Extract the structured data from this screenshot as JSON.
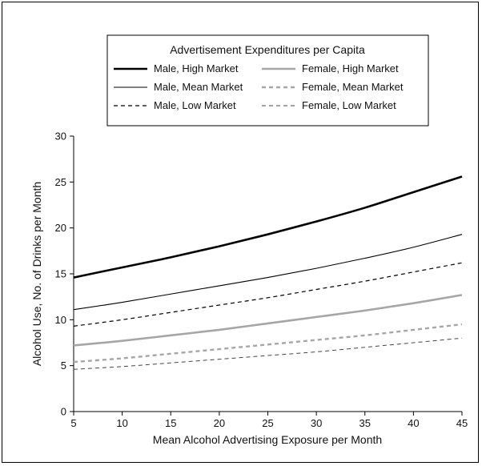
{
  "chart_data": {
    "type": "line",
    "title": "",
    "xlabel": "Mean Alcohol Advertising Exposure per Month",
    "ylabel": "Alcohol Use, No. of Drinks per Month",
    "xlim": [
      5,
      45
    ],
    "ylim": [
      0,
      30
    ],
    "x_ticks": [
      "5",
      "10",
      "15",
      "20",
      "25",
      "30",
      "35",
      "40",
      "45"
    ],
    "y_ticks": [
      "0",
      "5",
      "10",
      "15",
      "20",
      "25",
      "30"
    ],
    "grid": false,
    "legend": {
      "title": "Advertisement Expenditures per Capita",
      "placement": "top-center"
    },
    "x": [
      5,
      10,
      15,
      20,
      25,
      30,
      35,
      40,
      45
    ],
    "series": [
      {
        "name": "Male, High Market",
        "values": [
          14.6,
          15.7,
          16.8,
          18.0,
          19.3,
          20.7,
          22.2,
          23.9,
          25.6
        ],
        "color": "#000000",
        "style": "solid-thick"
      },
      {
        "name": "Male, Mean Market",
        "values": [
          11.1,
          11.9,
          12.8,
          13.7,
          14.6,
          15.6,
          16.7,
          17.9,
          19.3
        ],
        "color": "#000000",
        "style": "solid-thin"
      },
      {
        "name": "Male, Low Market",
        "values": [
          9.3,
          10.0,
          10.8,
          11.6,
          12.4,
          13.3,
          14.2,
          15.2,
          16.2
        ],
        "color": "#000000",
        "style": "dashed"
      },
      {
        "name": "Female, High Market",
        "values": [
          7.2,
          7.7,
          8.3,
          8.9,
          9.6,
          10.3,
          11.0,
          11.8,
          12.7
        ],
        "color": "#a6a6a6",
        "style": "solid-thick"
      },
      {
        "name": "Female, Mean Market",
        "values": [
          5.4,
          5.8,
          6.3,
          6.8,
          7.3,
          7.8,
          8.3,
          8.9,
          9.5
        ],
        "color": "#a6a6a6",
        "style": "dashed-thick"
      },
      {
        "name": "Female, Low Market",
        "values": [
          4.6,
          4.9,
          5.3,
          5.7,
          6.1,
          6.5,
          7.0,
          7.5,
          8.0
        ],
        "color": "#444444",
        "style": "dashed-thin"
      }
    ]
  }
}
